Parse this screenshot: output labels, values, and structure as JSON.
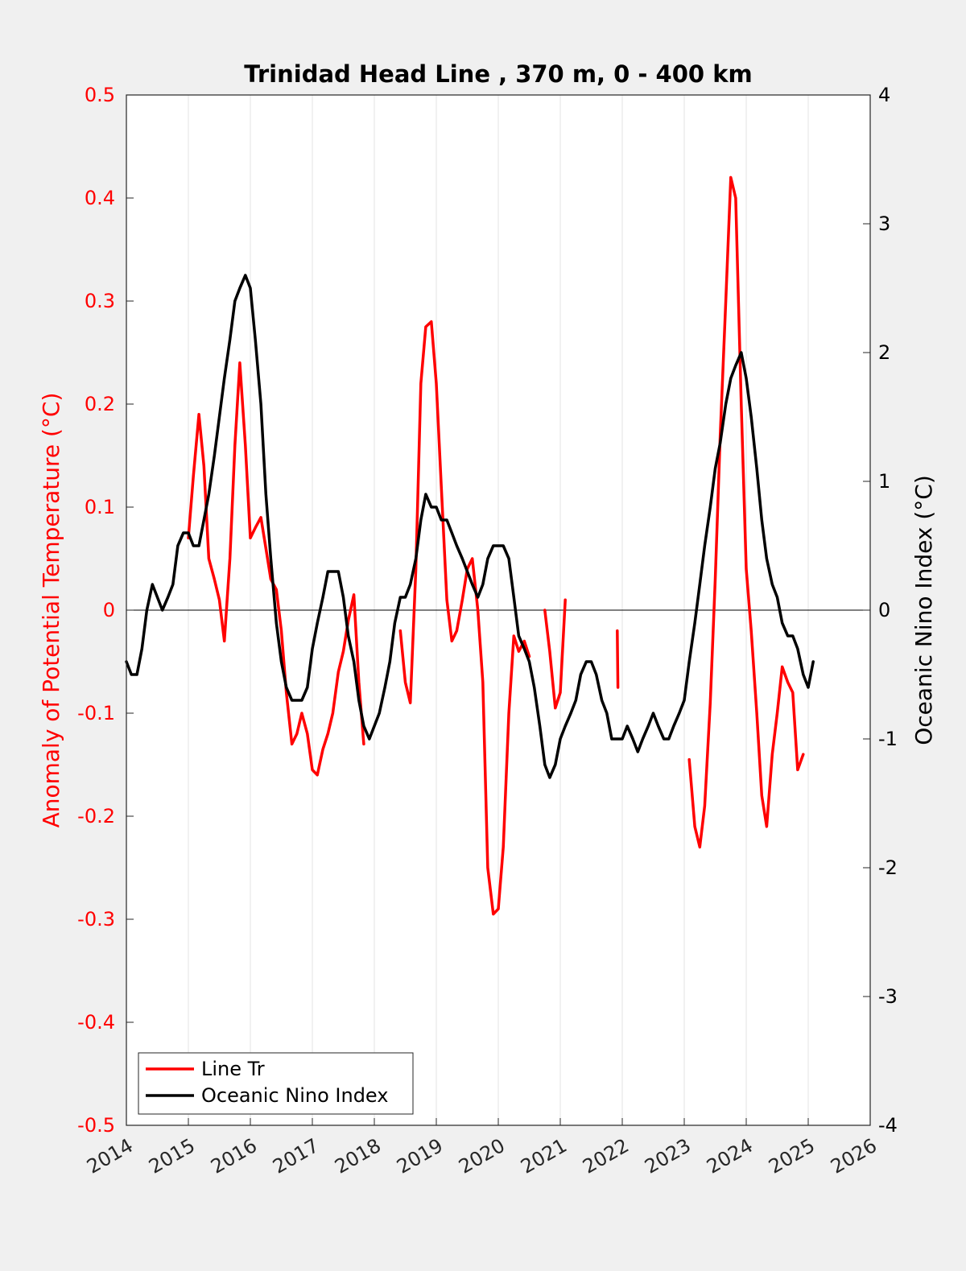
{
  "chart_data": {
    "type": "line",
    "title": "Trinidad Head Line , 370 m, 0 - 400 km",
    "ylabel_left": "Anomaly of Potential Temperature (°C)",
    "ylabel_right": "Oceanic Nino Index (°C)",
    "xlim": [
      2014,
      2026
    ],
    "ylim_left": [
      -0.5,
      0.5
    ],
    "ylim_right": [
      -4,
      4
    ],
    "x_ticks": [
      "2014",
      "2015",
      "2016",
      "2017",
      "2018",
      "2019",
      "2020",
      "2021",
      "2022",
      "2023",
      "2024",
      "2025",
      "2026"
    ],
    "y_ticks_left": [
      "0.5",
      "0.4",
      "0.3",
      "0.2",
      "0.1",
      "0",
      "-0.1",
      "-0.2",
      "-0.3",
      "-0.4",
      "-0.5"
    ],
    "y_ticks_right": [
      "4",
      "3",
      "2",
      "1",
      "0",
      "-1",
      "-2",
      "-3",
      "-4"
    ],
    "grid": "vertical",
    "zero_line": true,
    "legend_position": "bottom-left",
    "colors": {
      "line_tr": "#ff0000",
      "oni": "#000000",
      "left_axis": "#ff0000",
      "right_axis": "#000000"
    },
    "series": [
      {
        "name": "Line Tr",
        "axis": "left",
        "color": "#ff0000",
        "segments": [
          [
            [
              2015.0,
              0.07
            ],
            [
              2015.08,
              0.13
            ],
            [
              2015.17,
              0.19
            ],
            [
              2015.25,
              0.14
            ],
            [
              2015.33,
              0.05
            ],
            [
              2015.42,
              0.03
            ],
            [
              2015.5,
              0.01
            ],
            [
              2015.58,
              -0.03
            ],
            [
              2015.67,
              0.05
            ],
            [
              2015.75,
              0.16
            ],
            [
              2015.83,
              0.24
            ],
            [
              2015.92,
              0.16
            ],
            [
              2016.0,
              0.07
            ],
            [
              2016.08,
              0.08
            ],
            [
              2016.17,
              0.09
            ],
            [
              2016.25,
              0.06
            ],
            [
              2016.33,
              0.03
            ],
            [
              2016.42,
              0.02
            ],
            [
              2016.5,
              -0.02
            ],
            [
              2016.58,
              -0.08
            ],
            [
              2016.67,
              -0.13
            ],
            [
              2016.75,
              -0.12
            ],
            [
              2016.83,
              -0.1
            ],
            [
              2016.92,
              -0.12
            ],
            [
              2017.0,
              -0.155
            ],
            [
              2017.08,
              -0.16
            ],
            [
              2017.17,
              -0.135
            ],
            [
              2017.25,
              -0.12
            ],
            [
              2017.33,
              -0.1
            ],
            [
              2017.42,
              -0.06
            ],
            [
              2017.5,
              -0.04
            ],
            [
              2017.58,
              -0.01
            ],
            [
              2017.67,
              0.015
            ],
            [
              2017.75,
              -0.07
            ],
            [
              2017.83,
              -0.13
            ]
          ],
          [
            [
              2018.42,
              -0.02
            ],
            [
              2018.5,
              -0.07
            ],
            [
              2018.58,
              -0.09
            ],
            [
              2018.67,
              0.04
            ],
            [
              2018.75,
              0.22
            ],
            [
              2018.83,
              0.275
            ],
            [
              2018.92,
              0.28
            ],
            [
              2019.0,
              0.22
            ],
            [
              2019.08,
              0.12
            ],
            [
              2019.17,
              0.01
            ],
            [
              2019.25,
              -0.03
            ],
            [
              2019.33,
              -0.02
            ],
            [
              2019.42,
              0.01
            ],
            [
              2019.5,
              0.04
            ],
            [
              2019.58,
              0.05
            ],
            [
              2019.67,
              0.0
            ],
            [
              2019.75,
              -0.07
            ],
            [
              2019.83,
              -0.25
            ],
            [
              2019.92,
              -0.295
            ],
            [
              2020.0,
              -0.29
            ],
            [
              2020.08,
              -0.23
            ],
            [
              2020.17,
              -0.1
            ],
            [
              2020.25,
              -0.025
            ],
            [
              2020.33,
              -0.04
            ],
            [
              2020.42,
              -0.03
            ],
            [
              2020.5,
              -0.045
            ]
          ],
          [
            [
              2020.75,
              0.0
            ],
            [
              2020.83,
              -0.04
            ],
            [
              2020.92,
              -0.095
            ],
            [
              2021.0,
              -0.08
            ],
            [
              2021.08,
              0.01
            ]
          ],
          [
            [
              2021.92,
              -0.02
            ],
            [
              2021.93,
              -0.075
            ]
          ],
          [
            [
              2023.08,
              -0.145
            ],
            [
              2023.17,
              -0.21
            ],
            [
              2023.25,
              -0.23
            ],
            [
              2023.33,
              -0.19
            ],
            [
              2023.42,
              -0.09
            ],
            [
              2023.5,
              0.03
            ],
            [
              2023.58,
              0.17
            ],
            [
              2023.67,
              0.3
            ],
            [
              2023.75,
              0.42
            ],
            [
              2023.83,
              0.4
            ],
            [
              2023.92,
              0.2
            ],
            [
              2024.0,
              0.04
            ],
            [
              2024.08,
              -0.02
            ],
            [
              2024.17,
              -0.1
            ],
            [
              2024.25,
              -0.18
            ],
            [
              2024.33,
              -0.21
            ],
            [
              2024.42,
              -0.14
            ],
            [
              2024.5,
              -0.1
            ],
            [
              2024.58,
              -0.055
            ],
            [
              2024.67,
              -0.07
            ],
            [
              2024.75,
              -0.08
            ],
            [
              2024.83,
              -0.155
            ],
            [
              2024.92,
              -0.14
            ]
          ]
        ]
      },
      {
        "name": "Oceanic Nino Index",
        "axis": "right",
        "color": "#000000",
        "segments": [
          [
            [
              2014.0,
              -0.4
            ],
            [
              2014.08,
              -0.5
            ],
            [
              2014.17,
              -0.5
            ],
            [
              2014.25,
              -0.3
            ],
            [
              2014.33,
              0.0
            ],
            [
              2014.42,
              0.2
            ],
            [
              2014.5,
              0.1
            ],
            [
              2014.58,
              0.0
            ],
            [
              2014.67,
              0.1
            ],
            [
              2014.75,
              0.2
            ],
            [
              2014.83,
              0.5
            ],
            [
              2014.92,
              0.6
            ],
            [
              2015.0,
              0.6
            ],
            [
              2015.08,
              0.5
            ],
            [
              2015.17,
              0.5
            ],
            [
              2015.25,
              0.7
            ],
            [
              2015.33,
              0.9
            ],
            [
              2015.42,
              1.2
            ],
            [
              2015.5,
              1.5
            ],
            [
              2015.58,
              1.8
            ],
            [
              2015.67,
              2.1
            ],
            [
              2015.75,
              2.4
            ],
            [
              2015.83,
              2.5
            ],
            [
              2015.92,
              2.6
            ],
            [
              2016.0,
              2.5
            ],
            [
              2016.08,
              2.1
            ],
            [
              2016.17,
              1.6
            ],
            [
              2016.25,
              0.9
            ],
            [
              2016.33,
              0.4
            ],
            [
              2016.42,
              -0.1
            ],
            [
              2016.5,
              -0.4
            ],
            [
              2016.58,
              -0.6
            ],
            [
              2016.67,
              -0.7
            ],
            [
              2016.75,
              -0.7
            ],
            [
              2016.83,
              -0.7
            ],
            [
              2016.92,
              -0.6
            ],
            [
              2017.0,
              -0.3
            ],
            [
              2017.08,
              -0.1
            ],
            [
              2017.17,
              0.1
            ],
            [
              2017.25,
              0.3
            ],
            [
              2017.33,
              0.3
            ],
            [
              2017.42,
              0.3
            ],
            [
              2017.5,
              0.1
            ],
            [
              2017.58,
              -0.2
            ],
            [
              2017.67,
              -0.4
            ],
            [
              2017.75,
              -0.7
            ],
            [
              2017.83,
              -0.9
            ],
            [
              2017.92,
              -1.0
            ],
            [
              2018.0,
              -0.9
            ],
            [
              2018.08,
              -0.8
            ],
            [
              2018.17,
              -0.6
            ],
            [
              2018.25,
              -0.4
            ],
            [
              2018.33,
              -0.1
            ],
            [
              2018.42,
              0.1
            ],
            [
              2018.5,
              0.1
            ],
            [
              2018.58,
              0.2
            ],
            [
              2018.67,
              0.4
            ],
            [
              2018.75,
              0.7
            ],
            [
              2018.83,
              0.9
            ],
            [
              2018.92,
              0.8
            ],
            [
              2019.0,
              0.8
            ],
            [
              2019.08,
              0.7
            ],
            [
              2019.17,
              0.7
            ],
            [
              2019.25,
              0.6
            ],
            [
              2019.33,
              0.5
            ],
            [
              2019.42,
              0.4
            ],
            [
              2019.5,
              0.3
            ],
            [
              2019.58,
              0.2
            ],
            [
              2019.67,
              0.1
            ],
            [
              2019.75,
              0.2
            ],
            [
              2019.83,
              0.4
            ],
            [
              2019.92,
              0.5
            ],
            [
              2020.0,
              0.5
            ],
            [
              2020.08,
              0.5
            ],
            [
              2020.17,
              0.4
            ],
            [
              2020.25,
              0.1
            ],
            [
              2020.33,
              -0.2
            ],
            [
              2020.42,
              -0.3
            ],
            [
              2020.5,
              -0.4
            ],
            [
              2020.58,
              -0.6
            ],
            [
              2020.67,
              -0.9
            ],
            [
              2020.75,
              -1.2
            ],
            [
              2020.83,
              -1.3
            ],
            [
              2020.92,
              -1.2
            ],
            [
              2021.0,
              -1.0
            ],
            [
              2021.08,
              -0.9
            ],
            [
              2021.17,
              -0.8
            ],
            [
              2021.25,
              -0.7
            ],
            [
              2021.33,
              -0.5
            ],
            [
              2021.42,
              -0.4
            ],
            [
              2021.5,
              -0.4
            ],
            [
              2021.58,
              -0.5
            ],
            [
              2021.67,
              -0.7
            ],
            [
              2021.75,
              -0.8
            ],
            [
              2021.83,
              -1.0
            ],
            [
              2021.92,
              -1.0
            ],
            [
              2022.0,
              -1.0
            ],
            [
              2022.08,
              -0.9
            ],
            [
              2022.17,
              -1.0
            ],
            [
              2022.25,
              -1.1
            ],
            [
              2022.33,
              -1.0
            ],
            [
              2022.42,
              -0.9
            ],
            [
              2022.5,
              -0.8
            ],
            [
              2022.58,
              -0.9
            ],
            [
              2022.67,
              -1.0
            ],
            [
              2022.75,
              -1.0
            ],
            [
              2022.83,
              -0.9
            ],
            [
              2022.92,
              -0.8
            ],
            [
              2023.0,
              -0.7
            ],
            [
              2023.08,
              -0.4
            ],
            [
              2023.17,
              -0.1
            ],
            [
              2023.25,
              0.2
            ],
            [
              2023.33,
              0.5
            ],
            [
              2023.42,
              0.8
            ],
            [
              2023.5,
              1.1
            ],
            [
              2023.58,
              1.3
            ],
            [
              2023.67,
              1.6
            ],
            [
              2023.75,
              1.8
            ],
            [
              2023.83,
              1.9
            ],
            [
              2023.92,
              2.0
            ],
            [
              2024.0,
              1.8
            ],
            [
              2024.08,
              1.5
            ],
            [
              2024.17,
              1.1
            ],
            [
              2024.25,
              0.7
            ],
            [
              2024.33,
              0.4
            ],
            [
              2024.42,
              0.2
            ],
            [
              2024.5,
              0.1
            ],
            [
              2024.58,
              -0.1
            ],
            [
              2024.67,
              -0.2
            ],
            [
              2024.75,
              -0.2
            ],
            [
              2024.83,
              -0.3
            ],
            [
              2024.92,
              -0.5
            ],
            [
              2025.0,
              -0.6
            ],
            [
              2025.08,
              -0.4
            ]
          ]
        ]
      }
    ]
  }
}
